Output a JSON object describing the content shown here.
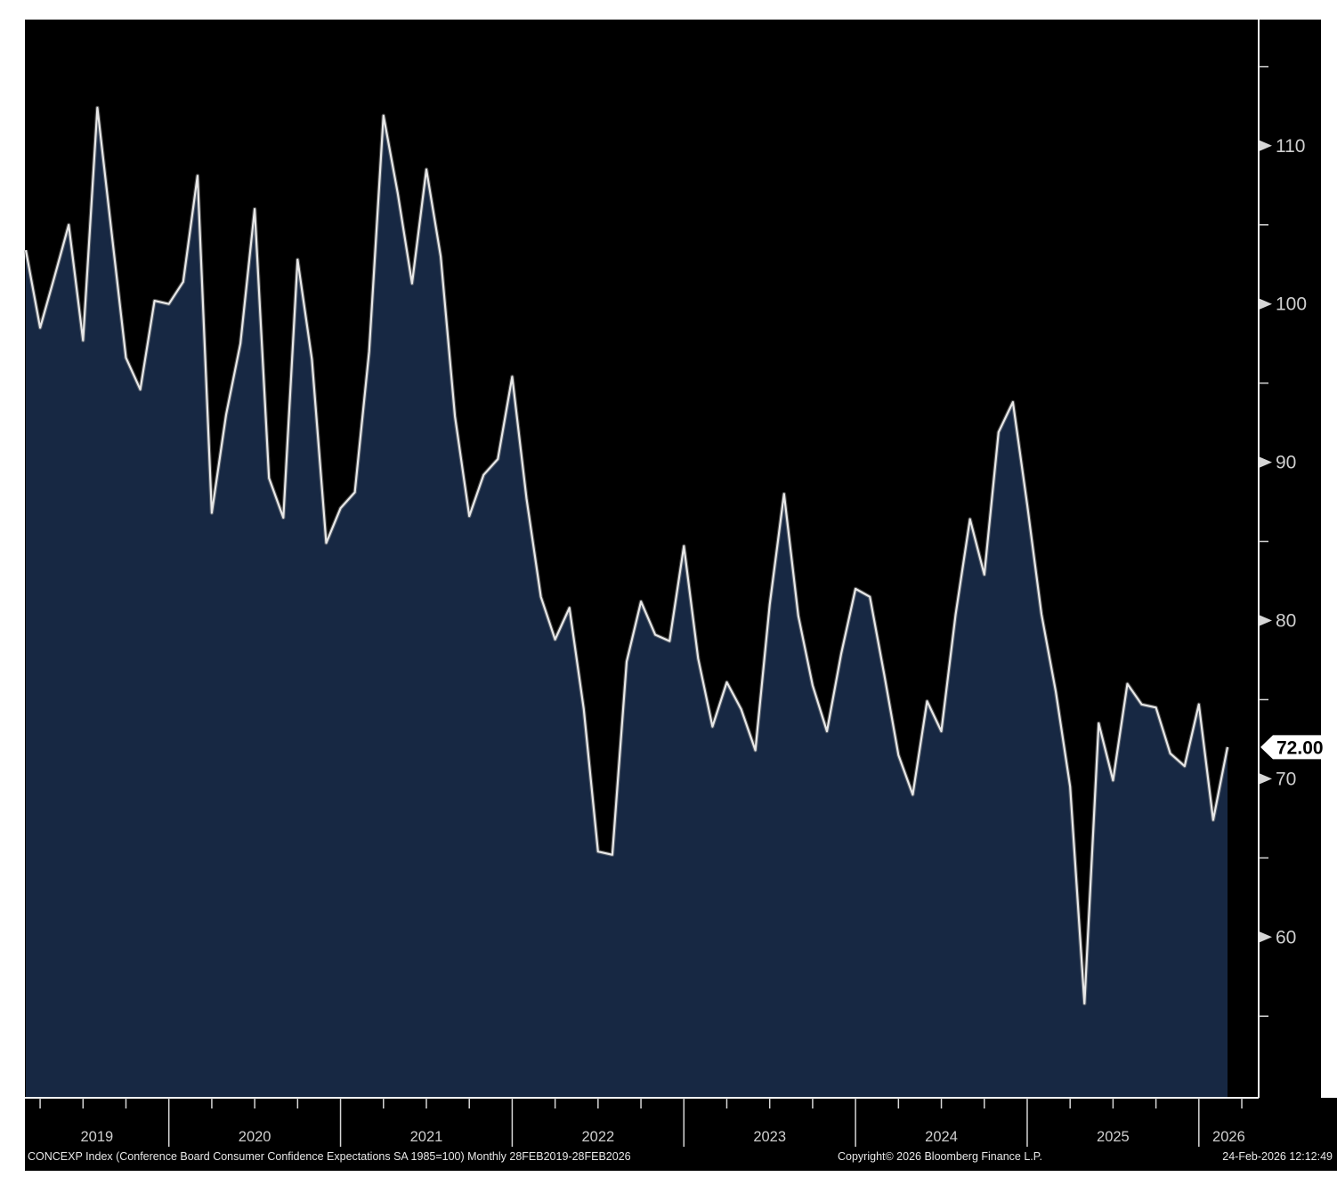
{
  "chart_data": {
    "type": "area",
    "title": "CONCEXP Index (Conference Board Consumer Confidence Expectations SA 1985=100) Monthly 28FEB2019-28FEB2026",
    "frequency": "monthly",
    "x": [
      "2019-02",
      "2019-03",
      "2019-04",
      "2019-05",
      "2019-06",
      "2019-07",
      "2019-08",
      "2019-09",
      "2019-10",
      "2019-11",
      "2019-12",
      "2020-01",
      "2020-02",
      "2020-03",
      "2020-04",
      "2020-05",
      "2020-06",
      "2020-07",
      "2020-08",
      "2020-09",
      "2020-10",
      "2020-11",
      "2020-12",
      "2021-01",
      "2021-02",
      "2021-03",
      "2021-04",
      "2021-05",
      "2021-06",
      "2021-07",
      "2021-08",
      "2021-09",
      "2021-10",
      "2021-11",
      "2021-12",
      "2022-01",
      "2022-02",
      "2022-03",
      "2022-04",
      "2022-05",
      "2022-06",
      "2022-07",
      "2022-08",
      "2022-09",
      "2022-10",
      "2022-11",
      "2022-12",
      "2023-01",
      "2023-02",
      "2023-03",
      "2023-04",
      "2023-05",
      "2023-06",
      "2023-07",
      "2023-08",
      "2023-09",
      "2023-10",
      "2023-11",
      "2023-12",
      "2024-01",
      "2024-02",
      "2024-03",
      "2024-04",
      "2024-05",
      "2024-06",
      "2024-07",
      "2024-08",
      "2024-09",
      "2024-10",
      "2024-11",
      "2024-12",
      "2025-01",
      "2025-02",
      "2025-03",
      "2025-04",
      "2025-05",
      "2025-06",
      "2025-07",
      "2025-08",
      "2025-09",
      "2025-10",
      "2025-11",
      "2025-12",
      "2026-01",
      "2026-02"
    ],
    "values": [
      103.4,
      98.5,
      101.7,
      105.0,
      97.7,
      112.4,
      104.5,
      96.6,
      94.6,
      100.2,
      100.0,
      101.4,
      108.1,
      86.8,
      93.0,
      97.5,
      106.0,
      89.0,
      86.5,
      102.8,
      96.5,
      84.9,
      87.1,
      88.1,
      97.0,
      111.9,
      107.0,
      101.3,
      108.5,
      103.0,
      92.9,
      86.6,
      89.2,
      90.2,
      95.4,
      87.7,
      81.5,
      78.8,
      80.8,
      74.4,
      65.4,
      65.2,
      77.4,
      81.2,
      79.1,
      78.7,
      84.7,
      77.6,
      73.3,
      76.1,
      74.4,
      71.8,
      81.0,
      88.0,
      80.3,
      75.9,
      73.0,
      77.9,
      82.0,
      81.5,
      76.6,
      71.5,
      69.0,
      74.9,
      73.0,
      80.4,
      86.4,
      82.9,
      91.9,
      93.8,
      87.3,
      80.4,
      75.5,
      69.5,
      55.8,
      73.5,
      69.9,
      76.0,
      74.7,
      74.5,
      71.6,
      70.8,
      74.7,
      67.4,
      72.0
    ],
    "last_value_label": "72.00",
    "ylim": [
      50.7,
      117.8
    ],
    "y_axis": {
      "major_ticks": [
        110,
        100,
        90,
        80,
        70,
        60
      ],
      "minor_ticks": [
        115,
        105,
        95,
        85,
        75,
        65,
        55
      ],
      "side": "right"
    },
    "x_axis": {
      "year_labels": [
        "2019",
        "2020",
        "2021",
        "2022",
        "2023",
        "2024",
        "2025",
        "2026"
      ],
      "minor_tick_interval": "quarterly"
    },
    "grid": false,
    "legend": "none"
  },
  "footer": {
    "title": "CONCEXP Index (Conference Board Consumer Confidence Expectations SA 1985=100) Monthly 28FEB2019-28FEB2026",
    "copyright": "Copyright© 2026 Bloomberg Finance L.P.",
    "timestamp": "24-Feb-2026 12:12:49"
  },
  "colors": {
    "page_bg": "#ffffff",
    "chart_bg": "#000000",
    "area_fill": "#172843",
    "line": "#e8e8e8",
    "line_glow": "#8c8c8c",
    "axis": "#f2f2f2",
    "tick": "#d6d6d6",
    "tick_text": "#cfcfcf",
    "footer_text": "#e8e8e8",
    "marker_bg": "#ffffff",
    "marker_text": "#000000"
  }
}
